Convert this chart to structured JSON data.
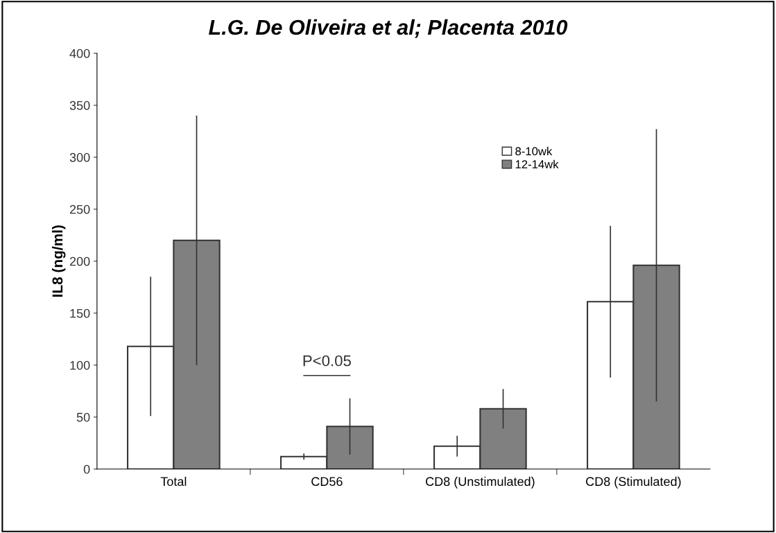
{
  "chart_data": {
    "type": "bar",
    "title": "L.G. De Oliveira et al; Placenta 2010",
    "ylabel": "IL8 (ng/ml)",
    "categories": [
      "Total",
      "CD56",
      "CD8 (Unstimulated)",
      "CD8 (Stimulated)"
    ],
    "series": [
      {
        "name": "8-10wk",
        "color": "#ffffff",
        "values": [
          118,
          12,
          22,
          161
        ],
        "errors": [
          67,
          3,
          10,
          73
        ]
      },
      {
        "name": "12-14wk",
        "color": "#808080",
        "values": [
          220,
          41,
          58,
          196
        ],
        "errors": [
          120,
          27,
          19,
          131
        ]
      }
    ],
    "ylim": [
      0,
      400
    ],
    "yticks": [
      0,
      50,
      100,
      150,
      200,
      250,
      300,
      350,
      400
    ],
    "annotations": [
      "P<0.05"
    ],
    "grid": false,
    "legend": "top right"
  }
}
